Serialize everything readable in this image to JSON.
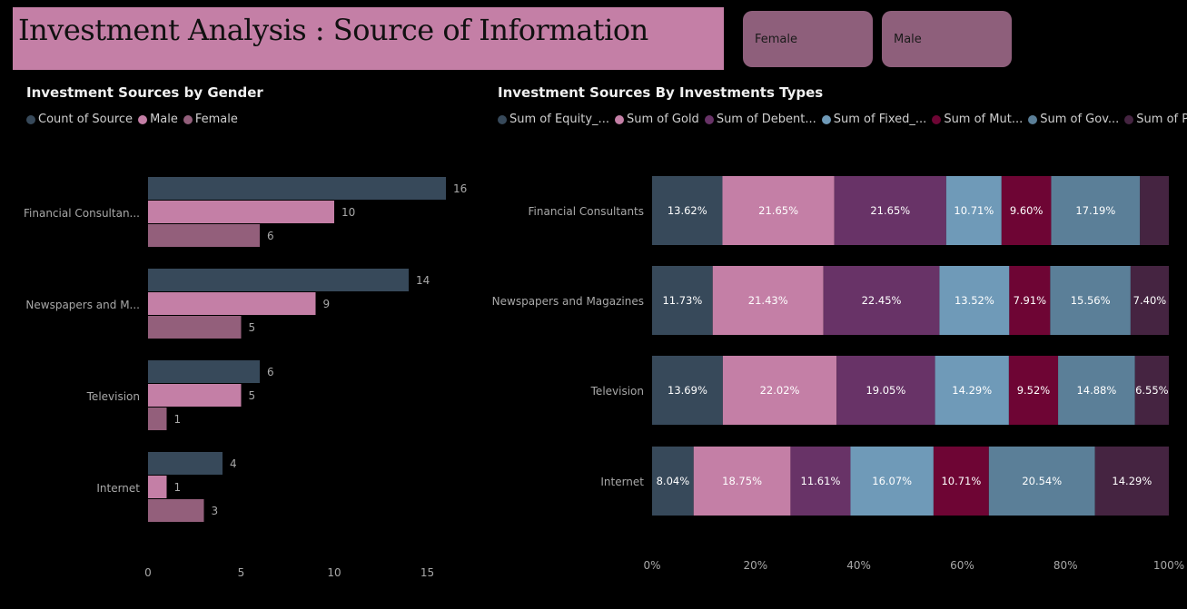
{
  "header": {
    "title": "Investment Analysis : Source of Information"
  },
  "slicers": [
    {
      "label": "Female"
    },
    {
      "label": "Male"
    }
  ],
  "colors": {
    "background": "#000000",
    "count": "#37495a",
    "male": "#c47fa6",
    "female": "#935f7b",
    "equity": "#37495a",
    "gold": "#c47fa6",
    "debentures": "#683367",
    "fixed": "#6f9ab8",
    "mutual": "#6e0534",
    "gov": "#5b7f98",
    "ppf": "#452441"
  },
  "chart_data": [
    {
      "type": "bar",
      "orientation": "horizontal",
      "title": "Investment Sources by Gender",
      "categories": [
        "Financial Consultan...",
        "Newspapers and M...",
        "Television",
        "Internet"
      ],
      "series": [
        {
          "name": "Count of Source",
          "values": [
            16,
            14,
            6,
            4
          ]
        },
        {
          "name": "Male",
          "values": [
            10,
            9,
            5,
            1
          ]
        },
        {
          "name": "Female",
          "values": [
            6,
            5,
            1,
            3
          ]
        }
      ],
      "x_ticks": [
        "0",
        "5",
        "10",
        "15"
      ],
      "xlim": [
        0,
        17.5
      ],
      "legend": "top-left"
    },
    {
      "type": "bar",
      "orientation": "horizontal",
      "stacked": "100%",
      "title": "Investment Sources By Investments Types",
      "categories": [
        "Financial Consultants",
        "Newspapers and Magazines",
        "Television",
        "Internet"
      ],
      "series": [
        {
          "name": "Sum of Equity_...",
          "values": [
            13.62,
            11.73,
            13.69,
            8.04
          ],
          "labels": [
            "13.62%",
            "11.73%",
            "13.69%",
            "8.04%"
          ]
        },
        {
          "name": "Sum of Gold",
          "values": [
            21.65,
            21.43,
            22.02,
            18.75
          ],
          "labels": [
            "21.65%",
            "21.43%",
            "22.02%",
            "18.75%"
          ]
        },
        {
          "name": "Sum of Debent...",
          "values": [
            21.65,
            22.45,
            19.05,
            11.61
          ],
          "labels": [
            "21.65%",
            "22.45%",
            "19.05%",
            "11.61%"
          ]
        },
        {
          "name": "Sum of Fixed_...",
          "values": [
            10.71,
            13.52,
            14.29,
            16.07
          ],
          "labels": [
            "10.71%",
            "13.52%",
            "14.29%",
            "16.07%"
          ]
        },
        {
          "name": "Sum of Mut...",
          "values": [
            9.6,
            7.91,
            9.52,
            10.71
          ],
          "labels": [
            "9.60%",
            "7.91%",
            "9.52%",
            "10.71%"
          ]
        },
        {
          "name": "Sum of Gov...",
          "values": [
            17.19,
            15.56,
            14.88,
            20.54
          ],
          "labels": [
            "17.19%",
            "15.56%",
            "14.88%",
            "20.54%"
          ]
        },
        {
          "name": "Sum of PPF",
          "values": [
            5.58,
            7.4,
            6.55,
            14.29
          ],
          "labels": [
            "",
            "7.40%",
            "6.55%",
            "14.29%"
          ]
        }
      ],
      "x_ticks": [
        "0%",
        "20%",
        "40%",
        "60%",
        "80%",
        "100%"
      ],
      "xlim": [
        0,
        100
      ],
      "legend": "top-left"
    }
  ]
}
